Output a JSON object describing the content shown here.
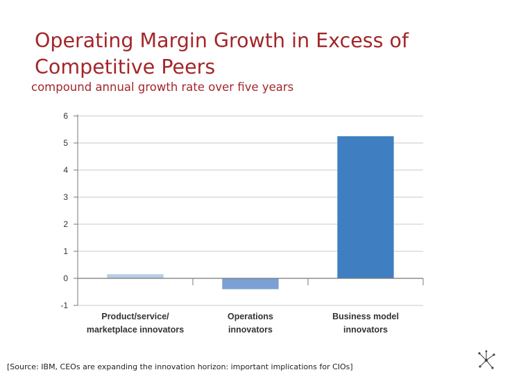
{
  "slide": {
    "title": "Operating Margin Growth in Excess of Competitive Peers",
    "subtitle": "compound annual growth rate over five years",
    "source": "[Source: IBM, CEOs are expanding the innovation horizon: important implications for CIOs]",
    "logo_icon": "network-star-icon"
  },
  "chart_data": {
    "type": "bar",
    "title": "Operating Margin Growth in Excess of Competitive Peers",
    "subtitle": "compound annual growth rate over five years",
    "xlabel": "",
    "ylabel": "",
    "ylim": [
      -1,
      6
    ],
    "yticks": [
      6,
      5,
      4,
      3,
      2,
      1,
      0,
      -1
    ],
    "grid": true,
    "legend": "none",
    "categories": [
      [
        "Product/service/",
        "marketplace innovators"
      ],
      [
        "Operations",
        "innovators"
      ],
      [
        "Business model",
        "innovators"
      ]
    ],
    "values": [
      0.15,
      -0.4,
      5.25
    ],
    "colors": [
      "#b8cce4",
      "#7ba0d4",
      "#3f7fc1"
    ]
  },
  "colors": {
    "title": "#a3262a",
    "grid": "#c8c8c8",
    "axis": "#777777"
  }
}
